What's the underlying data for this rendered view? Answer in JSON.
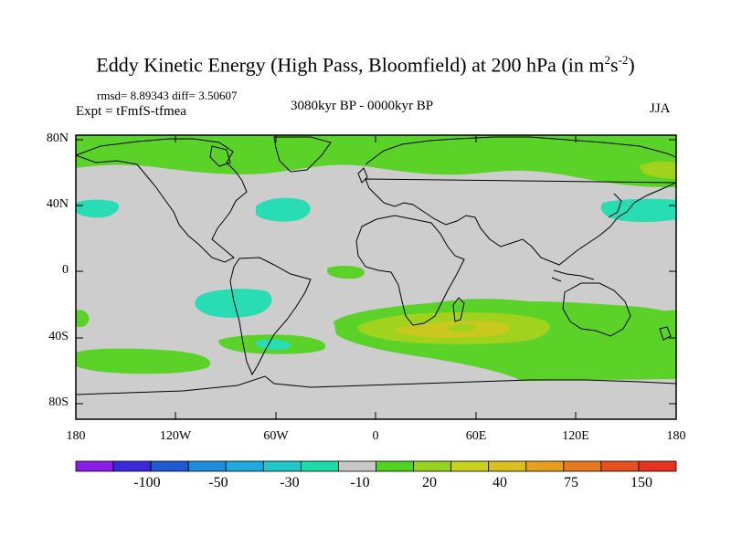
{
  "title": "Eddy Kinetic Energy (High Pass, Bloomfield) at 200 hPa (in m",
  "title_sup1": "2",
  "title_mid": "s",
  "title_sup2": "-2",
  "title_end": ")",
  "stats": "rmsd= 8.89343 diff= 3.50607",
  "experiment": "Expt = tFmfS-tfmea",
  "period": "3080kyr BP - 0000kyr BP",
  "season": "JJA",
  "lat_labels": [
    "80N",
    "40N",
    "0",
    "40S",
    "80S"
  ],
  "lon_labels": [
    "180",
    "120W",
    "60W",
    "0",
    "60E",
    "120E",
    "180"
  ],
  "colorbar": {
    "labels": [
      "-100",
      "-50",
      "-30",
      "-10",
      "20",
      "40",
      "75",
      "150"
    ],
    "colors": [
      "#8a1ee6",
      "#3c28dc",
      "#1e5ad2",
      "#1e8cdc",
      "#1eaadc",
      "#1ec8c8",
      "#1edcaa",
      "#c8c8c8",
      "#50d21e",
      "#96d21e",
      "#c8d21e",
      "#dcbe1e",
      "#e6a01e",
      "#e6781e",
      "#e6501e",
      "#e6321e"
    ]
  },
  "field_colors": {
    "neutral": "#cdcdcd",
    "positive_low": "#5ad228",
    "positive_mid": "#a0d21e",
    "positive_high": "#c8c81e",
    "negative_low": "#28dcb4"
  }
}
